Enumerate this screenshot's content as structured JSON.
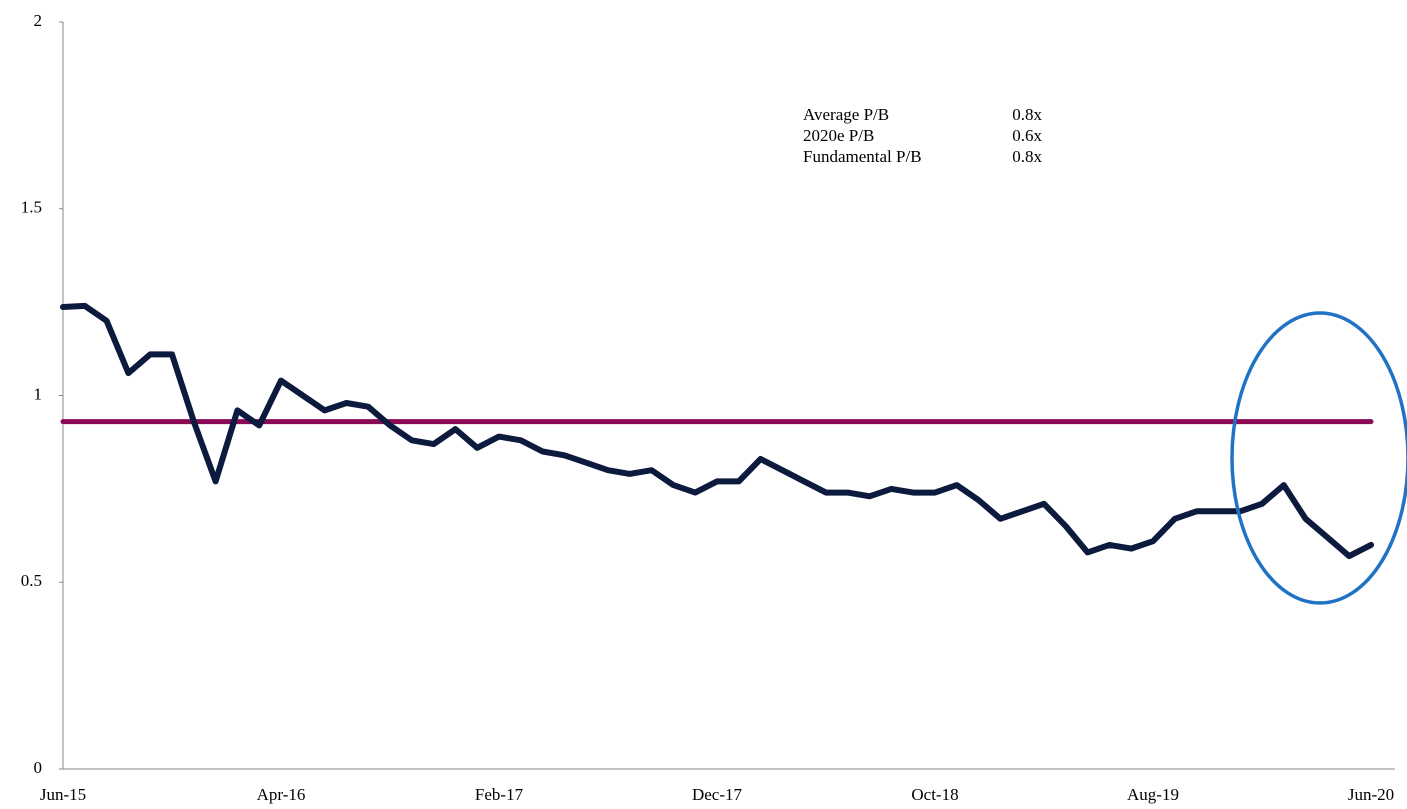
{
  "chart_data": {
    "type": "line",
    "categories": [
      "Jun-15",
      null,
      null,
      null,
      null,
      null,
      null,
      null,
      null,
      null,
      "Apr-16",
      null,
      null,
      null,
      null,
      null,
      null,
      null,
      null,
      null,
      "Feb-17",
      null,
      null,
      null,
      null,
      null,
      null,
      null,
      null,
      null,
      "Dec-17",
      null,
      null,
      null,
      null,
      null,
      null,
      null,
      null,
      null,
      "Oct-18",
      null,
      null,
      null,
      null,
      null,
      null,
      null,
      null,
      null,
      "Aug-19",
      null,
      null,
      null,
      null,
      null,
      null,
      null,
      null,
      null,
      "Jun-20"
    ],
    "series": [
      {
        "color": "#0b1a3d",
        "values": [
          1.237,
          1.24,
          1.2,
          1.06,
          1.11,
          1.11,
          0.93,
          0.77,
          0.96,
          0.92,
          1.04,
          1.0,
          0.96,
          0.98,
          0.97,
          0.92,
          0.88,
          0.87,
          0.91,
          0.86,
          0.89,
          0.88,
          0.85,
          0.84,
          0.82,
          0.8,
          0.79,
          0.8,
          0.76,
          0.74,
          0.77,
          0.77,
          0.83,
          0.8,
          0.77,
          0.74,
          0.74,
          0.73,
          0.75,
          0.74,
          0.74,
          0.76,
          0.72,
          0.67,
          0.69,
          0.71,
          0.65,
          0.58,
          0.6,
          0.59,
          0.61,
          0.67,
          0.69,
          0.69,
          0.69,
          0.71,
          0.76,
          0.67,
          0.62,
          0.57,
          0.6
        ]
      },
      {
        "color": "#8a0a55",
        "values": [
          0.93,
          0.93,
          0.93,
          0.93,
          0.93,
          0.93,
          0.93,
          0.93,
          0.93,
          0.93,
          0.93,
          0.93,
          0.93,
          0.93,
          0.93,
          0.93,
          0.93,
          0.93,
          0.93,
          0.93,
          0.93,
          0.93,
          0.93,
          0.93,
          0.93,
          0.93,
          0.93,
          0.93,
          0.93,
          0.93,
          0.93,
          0.93,
          0.93,
          0.93,
          0.93,
          0.93,
          0.93,
          0.93,
          0.93,
          0.93,
          0.93,
          0.93,
          0.93,
          0.93,
          0.93,
          0.93,
          0.93,
          0.93,
          0.93,
          0.93,
          0.93,
          0.93,
          0.93,
          0.93,
          0.93,
          0.93,
          0.93,
          0.93,
          0.93,
          0.93,
          0.93
        ]
      }
    ],
    "ylim": [
      0,
      2
    ],
    "yticks": [
      0,
      0.5,
      1,
      1.5,
      2
    ],
    "grid": false,
    "annotations": [
      [
        "Average P/B",
        "0.8x"
      ],
      [
        "2020e P/B",
        "0.6x"
      ],
      [
        "Fundamental P/B",
        "0.8x"
      ]
    ]
  }
}
